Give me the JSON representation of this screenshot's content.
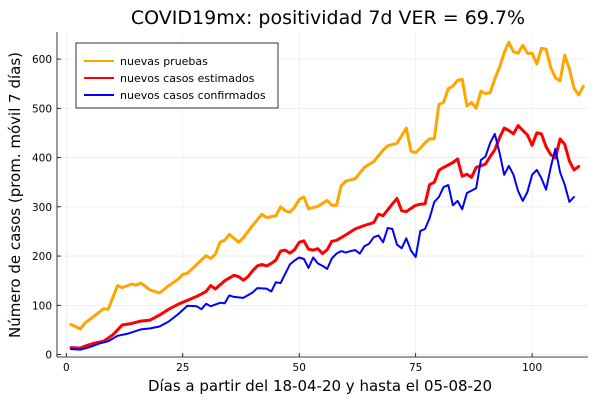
{
  "chart_data": {
    "type": "line",
    "title": "COVID19mx: positividad 7d VER = 69.7%",
    "xlabel": "Días a partir del 18-04-20 y hasta el 05-08-20",
    "ylabel": "Número de casos (prom. móvil 7 días)",
    "xlim": [
      -2,
      112
    ],
    "ylim": [
      -5,
      655
    ],
    "xticks": [
      0,
      25,
      50,
      75,
      100
    ],
    "yticks": [
      0,
      100,
      200,
      300,
      400,
      500,
      600
    ],
    "grid": true,
    "legend_position": "top-left",
    "series": [
      {
        "name": "nuevas pruebas",
        "color": "#FFA500",
        "line_width": 3,
        "points": [
          [
            1,
            61
          ],
          [
            3,
            52
          ],
          [
            4,
            64
          ],
          [
            6,
            78
          ],
          [
            8,
            93
          ],
          [
            9,
            92
          ],
          [
            11,
            140
          ],
          [
            12,
            136
          ],
          [
            14,
            143
          ],
          [
            15,
            141
          ],
          [
            16,
            145
          ],
          [
            18,
            131
          ],
          [
            20,
            125
          ],
          [
            22,
            140
          ],
          [
            24,
            153
          ],
          [
            25,
            163
          ],
          [
            26,
            165
          ],
          [
            28,
            183
          ],
          [
            30,
            201
          ],
          [
            31,
            195
          ],
          [
            32,
            204
          ],
          [
            33,
            228
          ],
          [
            34,
            232
          ],
          [
            35,
            244
          ],
          [
            36,
            236
          ],
          [
            37,
            228
          ],
          [
            38,
            237
          ],
          [
            40,
            262
          ],
          [
            42,
            285
          ],
          [
            43,
            278
          ],
          [
            45,
            282
          ],
          [
            46,
            300
          ],
          [
            47,
            292
          ],
          [
            48,
            289
          ],
          [
            49,
            299
          ],
          [
            50,
            315
          ],
          [
            51,
            320
          ],
          [
            52,
            296
          ],
          [
            54,
            301
          ],
          [
            56,
            313
          ],
          [
            57,
            303
          ],
          [
            58,
            303
          ],
          [
            59,
            342
          ],
          [
            60,
            352
          ],
          [
            62,
            357
          ],
          [
            64,
            380
          ],
          [
            66,
            392
          ],
          [
            68,
            415
          ],
          [
            69,
            424
          ],
          [
            71,
            429
          ],
          [
            73,
            460
          ],
          [
            74,
            413
          ],
          [
            75,
            410
          ],
          [
            76,
            419
          ],
          [
            77,
            430
          ],
          [
            78,
            438
          ],
          [
            79,
            438
          ],
          [
            80,
            508
          ],
          [
            81,
            512
          ],
          [
            82,
            540
          ],
          [
            83,
            545
          ],
          [
            84,
            557
          ],
          [
            85,
            559
          ],
          [
            86,
            505
          ],
          [
            87,
            512
          ],
          [
            88,
            500
          ],
          [
            89,
            535
          ],
          [
            90,
            530
          ],
          [
            91,
            532
          ],
          [
            92,
            560
          ],
          [
            93,
            583
          ],
          [
            94,
            613
          ],
          [
            95,
            634
          ],
          [
            96,
            615
          ],
          [
            97,
            612
          ],
          [
            98,
            628
          ],
          [
            99,
            612
          ],
          [
            100,
            612
          ],
          [
            101,
            590
          ],
          [
            102,
            622
          ],
          [
            103,
            620
          ],
          [
            104,
            583
          ],
          [
            105,
            562
          ],
          [
            106,
            556
          ],
          [
            107,
            608
          ],
          [
            108,
            580
          ],
          [
            109,
            541
          ],
          [
            110,
            527
          ],
          [
            111,
            545
          ]
        ]
      },
      {
        "name": "nuevos casos estimados",
        "color": "#FF0000",
        "line_width": 3,
        "points": [
          [
            1,
            14
          ],
          [
            3,
            13
          ],
          [
            4,
            17
          ],
          [
            6,
            23
          ],
          [
            8,
            27
          ],
          [
            10,
            40
          ],
          [
            12,
            60
          ],
          [
            14,
            63
          ],
          [
            16,
            68
          ],
          [
            18,
            70
          ],
          [
            20,
            80
          ],
          [
            22,
            92
          ],
          [
            24,
            102
          ],
          [
            26,
            110
          ],
          [
            28,
            118
          ],
          [
            30,
            128
          ],
          [
            31,
            140
          ],
          [
            32,
            133
          ],
          [
            34,
            150
          ],
          [
            36,
            161
          ],
          [
            37,
            158
          ],
          [
            38,
            151
          ],
          [
            39,
            158
          ],
          [
            40,
            170
          ],
          [
            41,
            180
          ],
          [
            42,
            183
          ],
          [
            43,
            180
          ],
          [
            44,
            185
          ],
          [
            45,
            192
          ],
          [
            46,
            210
          ],
          [
            47,
            212
          ],
          [
            48,
            206
          ],
          [
            49,
            213
          ],
          [
            50,
            228
          ],
          [
            51,
            231
          ],
          [
            52,
            214
          ],
          [
            53,
            212
          ],
          [
            54,
            215
          ],
          [
            55,
            205
          ],
          [
            56,
            213
          ],
          [
            57,
            230
          ],
          [
            58,
            232
          ],
          [
            60,
            243
          ],
          [
            62,
            255
          ],
          [
            64,
            262
          ],
          [
            66,
            268
          ],
          [
            67,
            285
          ],
          [
            68,
            282
          ],
          [
            70,
            306
          ],
          [
            71,
            317
          ],
          [
            72,
            292
          ],
          [
            73,
            290
          ],
          [
            74,
            297
          ],
          [
            75,
            303
          ],
          [
            76,
            305
          ],
          [
            77,
            306
          ],
          [
            78,
            345
          ],
          [
            79,
            350
          ],
          [
            80,
            374
          ],
          [
            81,
            380
          ],
          [
            82,
            385
          ],
          [
            83,
            390
          ],
          [
            84,
            397
          ],
          [
            85,
            362
          ],
          [
            86,
            366
          ],
          [
            87,
            360
          ],
          [
            88,
            380
          ],
          [
            89,
            383
          ],
          [
            90,
            387
          ],
          [
            91,
            402
          ],
          [
            92,
            416
          ],
          [
            93,
            440
          ],
          [
            94,
            460
          ],
          [
            95,
            455
          ],
          [
            96,
            448
          ],
          [
            97,
            465
          ],
          [
            98,
            455
          ],
          [
            99,
            446
          ],
          [
            100,
            425
          ],
          [
            101,
            450
          ],
          [
            102,
            448
          ],
          [
            103,
            422
          ],
          [
            104,
            406
          ],
          [
            105,
            399
          ],
          [
            106,
            438
          ],
          [
            107,
            427
          ],
          [
            108,
            393
          ],
          [
            109,
            375
          ],
          [
            110,
            382
          ]
        ]
      },
      {
        "name": "nuevos casos confirmados",
        "color": "#0000FF",
        "line_width": 2,
        "points": [
          [
            1,
            11
          ],
          [
            3,
            10
          ],
          [
            5,
            15
          ],
          [
            7,
            22
          ],
          [
            9,
            27
          ],
          [
            11,
            38
          ],
          [
            13,
            42
          ],
          [
            15,
            48
          ],
          [
            16,
            51
          ],
          [
            18,
            53
          ],
          [
            20,
            57
          ],
          [
            22,
            67
          ],
          [
            24,
            82
          ],
          [
            26,
            99
          ],
          [
            28,
            98
          ],
          [
            29,
            92
          ],
          [
            30,
            103
          ],
          [
            31,
            98
          ],
          [
            33,
            105
          ],
          [
            34,
            104
          ],
          [
            35,
            120
          ],
          [
            36,
            117
          ],
          [
            38,
            115
          ],
          [
            40,
            126
          ],
          [
            41,
            135
          ],
          [
            43,
            134
          ],
          [
            44,
            128
          ],
          [
            45,
            147
          ],
          [
            46,
            145
          ],
          [
            48,
            183
          ],
          [
            49,
            191
          ],
          [
            50,
            197
          ],
          [
            51,
            194
          ],
          [
            52,
            176
          ],
          [
            53,
            197
          ],
          [
            54,
            185
          ],
          [
            55,
            180
          ],
          [
            56,
            174
          ],
          [
            57,
            195
          ],
          [
            58,
            205
          ],
          [
            59,
            210
          ],
          [
            60,
            207
          ],
          [
            61,
            210
          ],
          [
            62,
            212
          ],
          [
            63,
            205
          ],
          [
            64,
            220
          ],
          [
            65,
            225
          ],
          [
            66,
            238
          ],
          [
            67,
            242
          ],
          [
            68,
            228
          ],
          [
            69,
            257
          ],
          [
            70,
            255
          ],
          [
            71,
            223
          ],
          [
            72,
            216
          ],
          [
            73,
            236
          ],
          [
            74,
            211
          ],
          [
            75,
            198
          ],
          [
            76,
            251
          ],
          [
            77,
            255
          ],
          [
            78,
            277
          ],
          [
            79,
            310
          ],
          [
            80,
            320
          ],
          [
            81,
            340
          ],
          [
            82,
            344
          ],
          [
            83,
            303
          ],
          [
            84,
            312
          ],
          [
            85,
            295
          ],
          [
            86,
            328
          ],
          [
            87,
            333
          ],
          [
            88,
            338
          ],
          [
            89,
            395
          ],
          [
            90,
            402
          ],
          [
            91,
            430
          ],
          [
            92,
            448
          ],
          [
            93,
            410
          ],
          [
            94,
            365
          ],
          [
            95,
            383
          ],
          [
            96,
            365
          ],
          [
            97,
            332
          ],
          [
            98,
            312
          ],
          [
            99,
            330
          ],
          [
            100,
            365
          ],
          [
            101,
            375
          ],
          [
            102,
            358
          ],
          [
            103,
            335
          ],
          [
            104,
            380
          ],
          [
            105,
            418
          ],
          [
            106,
            370
          ],
          [
            107,
            345
          ],
          [
            108,
            310
          ],
          [
            109,
            320
          ]
        ]
      }
    ]
  }
}
